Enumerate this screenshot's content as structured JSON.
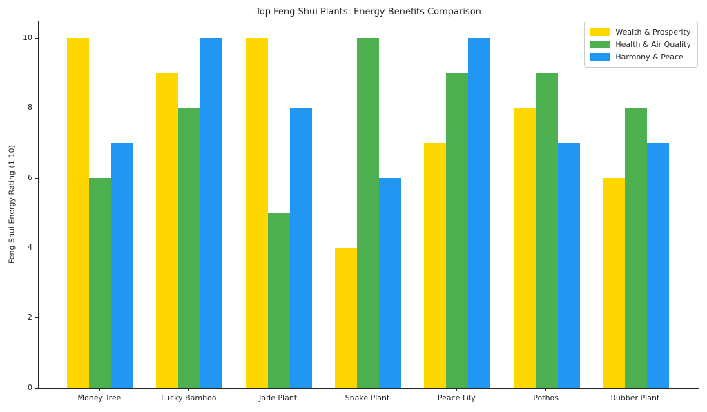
{
  "chart_data": {
    "type": "bar",
    "title": "Top Feng Shui Plants: Energy Benefits Comparison",
    "xlabel": "",
    "ylabel": "Feng Shui Energy Rating (1-10)",
    "categories": [
      "Money Tree",
      "Lucky Bamboo",
      "Jade Plant",
      "Snake Plant",
      "Peace Lily",
      "Pothos",
      "Rubber Plant"
    ],
    "series": [
      {
        "name": "Wealth & Prosperity",
        "color": "#FFD700",
        "values": [
          10,
          9,
          10,
          4,
          7,
          8,
          6
        ]
      },
      {
        "name": "Health & Air Quality",
        "color": "#4CAF50",
        "values": [
          6,
          8,
          5,
          10,
          9,
          9,
          8
        ]
      },
      {
        "name": "Harmony & Peace",
        "color": "#2196F3",
        "values": [
          7,
          10,
          8,
          6,
          10,
          7,
          7
        ]
      }
    ],
    "yticks": [
      0,
      2,
      4,
      6,
      8,
      10
    ],
    "ylim": [
      0,
      10.5
    ],
    "grid": false,
    "legend_position": "upper right",
    "background_color": "#ffffff",
    "axis_color": "#262626"
  }
}
